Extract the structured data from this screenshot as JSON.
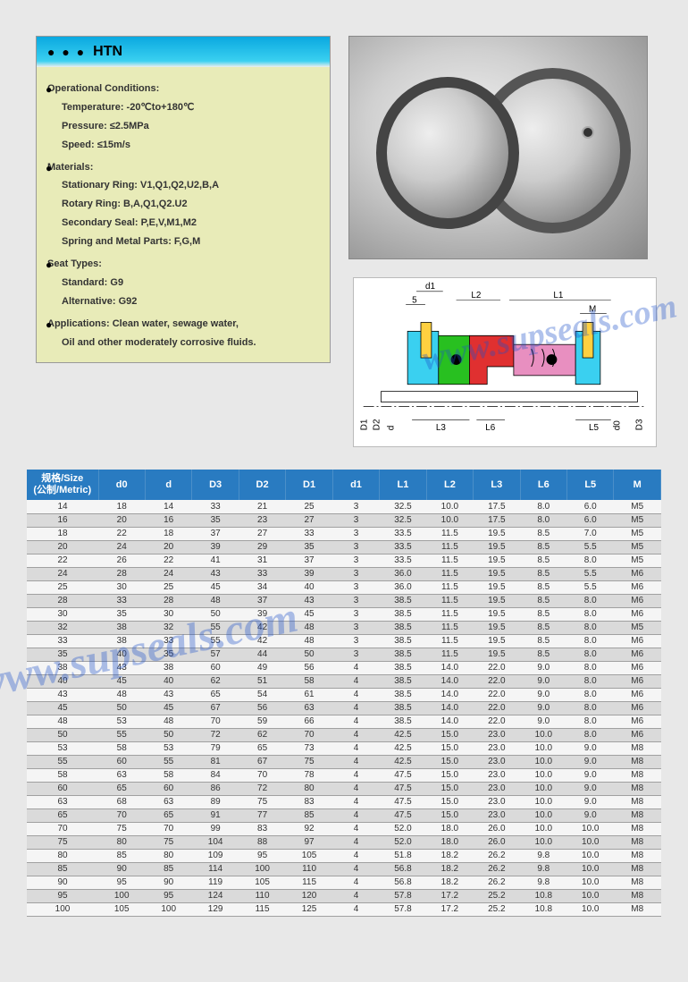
{
  "title": {
    "code": "HTN",
    "dots": "● ● ●"
  },
  "specs": {
    "operational_heading": "Operational Conditions:",
    "temperature": "Temperature: -20℃to+180℃",
    "pressure": "Pressure: ≤2.5MPa",
    "speed": "Speed: ≤15m/s",
    "materials_heading": "Materials:",
    "stationary": "Stationary Ring: V1,Q1,Q2,U2,B,A",
    "rotary": "Rotary Ring: B,A,Q1,Q2.U2",
    "secondary": "Secondary Seal: P,E,V,M1,M2",
    "spring": "Spring and Metal Parts: F,G,M",
    "seat_heading": "Seat Types:",
    "standard": "Standard:  G9",
    "alternative": "Alternative:  G92",
    "app_heading": "Applications: Clean water, sewage water,",
    "app_line2": "Oil and other moderately corrosive fluids."
  },
  "diagram_labels": {
    "d1": "d1",
    "five": "5",
    "L2": "L2",
    "L1": "L1",
    "M": "M",
    "L3": "L3",
    "L6": "L6",
    "L5": "L5",
    "D1": "D1",
    "D2": "D2",
    "d": "d",
    "d0": "d0",
    "D3": "D3"
  },
  "watermark": "www.supseals.com",
  "table": {
    "header_first": "规格/Size\n(公制/Metric)",
    "columns": [
      "d0",
      "d",
      "D3",
      "D2",
      "D1",
      "d1",
      "L1",
      "L2",
      "L3",
      "L6",
      "L5",
      "M"
    ],
    "rows": [
      [
        "14",
        "18",
        "14",
        "33",
        "21",
        "25",
        "3",
        "32.5",
        "10.0",
        "17.5",
        "8.0",
        "6.0",
        "M5"
      ],
      [
        "16",
        "20",
        "16",
        "35",
        "23",
        "27",
        "3",
        "32.5",
        "10.0",
        "17.5",
        "8.0",
        "6.0",
        "M5"
      ],
      [
        "18",
        "22",
        "18",
        "37",
        "27",
        "33",
        "3",
        "33.5",
        "11.5",
        "19.5",
        "8.5",
        "7.0",
        "M5"
      ],
      [
        "20",
        "24",
        "20",
        "39",
        "29",
        "35",
        "3",
        "33.5",
        "11.5",
        "19.5",
        "8.5",
        "5.5",
        "M5"
      ],
      [
        "22",
        "26",
        "22",
        "41",
        "31",
        "37",
        "3",
        "33.5",
        "11.5",
        "19.5",
        "8.5",
        "8.0",
        "M5"
      ],
      [
        "24",
        "28",
        "24",
        "43",
        "33",
        "39",
        "3",
        "36.0",
        "11.5",
        "19.5",
        "8.5",
        "5.5",
        "M6"
      ],
      [
        "25",
        "30",
        "25",
        "45",
        "34",
        "40",
        "3",
        "36.0",
        "11.5",
        "19.5",
        "8.5",
        "5.5",
        "M6"
      ],
      [
        "28",
        "33",
        "28",
        "48",
        "37",
        "43",
        "3",
        "38.5",
        "11.5",
        "19.5",
        "8.5",
        "8.0",
        "M6"
      ],
      [
        "30",
        "35",
        "30",
        "50",
        "39",
        "45",
        "3",
        "38.5",
        "11.5",
        "19.5",
        "8.5",
        "8.0",
        "M6"
      ],
      [
        "32",
        "38",
        "32",
        "55",
        "42",
        "48",
        "3",
        "38.5",
        "11.5",
        "19.5",
        "8.5",
        "8.0",
        "M5"
      ],
      [
        "33",
        "38",
        "33",
        "55",
        "42",
        "48",
        "3",
        "38.5",
        "11.5",
        "19.5",
        "8.5",
        "8.0",
        "M6"
      ],
      [
        "35",
        "40",
        "35",
        "57",
        "44",
        "50",
        "3",
        "38.5",
        "11.5",
        "19.5",
        "8.5",
        "8.0",
        "M6"
      ],
      [
        "38",
        "43",
        "38",
        "60",
        "49",
        "56",
        "4",
        "38.5",
        "14.0",
        "22.0",
        "9.0",
        "8.0",
        "M6"
      ],
      [
        "40",
        "45",
        "40",
        "62",
        "51",
        "58",
        "4",
        "38.5",
        "14.0",
        "22.0",
        "9.0",
        "8.0",
        "M6"
      ],
      [
        "43",
        "48",
        "43",
        "65",
        "54",
        "61",
        "4",
        "38.5",
        "14.0",
        "22.0",
        "9.0",
        "8.0",
        "M6"
      ],
      [
        "45",
        "50",
        "45",
        "67",
        "56",
        "63",
        "4",
        "38.5",
        "14.0",
        "22.0",
        "9.0",
        "8.0",
        "M6"
      ],
      [
        "48",
        "53",
        "48",
        "70",
        "59",
        "66",
        "4",
        "38.5",
        "14.0",
        "22.0",
        "9.0",
        "8.0",
        "M6"
      ],
      [
        "50",
        "55",
        "50",
        "72",
        "62",
        "70",
        "4",
        "42.5",
        "15.0",
        "23.0",
        "10.0",
        "8.0",
        "M6"
      ],
      [
        "53",
        "58",
        "53",
        "79",
        "65",
        "73",
        "4",
        "42.5",
        "15.0",
        "23.0",
        "10.0",
        "9.0",
        "M8"
      ],
      [
        "55",
        "60",
        "55",
        "81",
        "67",
        "75",
        "4",
        "42.5",
        "15.0",
        "23.0",
        "10.0",
        "9.0",
        "M8"
      ],
      [
        "58",
        "63",
        "58",
        "84",
        "70",
        "78",
        "4",
        "47.5",
        "15.0",
        "23.0",
        "10.0",
        "9.0",
        "M8"
      ],
      [
        "60",
        "65",
        "60",
        "86",
        "72",
        "80",
        "4",
        "47.5",
        "15.0",
        "23.0",
        "10.0",
        "9.0",
        "M8"
      ],
      [
        "63",
        "68",
        "63",
        "89",
        "75",
        "83",
        "4",
        "47.5",
        "15.0",
        "23.0",
        "10.0",
        "9.0",
        "M8"
      ],
      [
        "65",
        "70",
        "65",
        "91",
        "77",
        "85",
        "4",
        "47.5",
        "15.0",
        "23.0",
        "10.0",
        "9.0",
        "M8"
      ],
      [
        "70",
        "75",
        "70",
        "99",
        "83",
        "92",
        "4",
        "52.0",
        "18.0",
        "26.0",
        "10.0",
        "10.0",
        "M8"
      ],
      [
        "75",
        "80",
        "75",
        "104",
        "88",
        "97",
        "4",
        "52.0",
        "18.0",
        "26.0",
        "10.0",
        "10.0",
        "M8"
      ],
      [
        "80",
        "85",
        "80",
        "109",
        "95",
        "105",
        "4",
        "51.8",
        "18.2",
        "26.2",
        "9.8",
        "10.0",
        "M8"
      ],
      [
        "85",
        "90",
        "85",
        "114",
        "100",
        "110",
        "4",
        "56.8",
        "18.2",
        "26.2",
        "9.8",
        "10.0",
        "M8"
      ],
      [
        "90",
        "95",
        "90",
        "119",
        "105",
        "115",
        "4",
        "56.8",
        "18.2",
        "26.2",
        "9.8",
        "10.0",
        "M8"
      ],
      [
        "95",
        "100",
        "95",
        "124",
        "110",
        "120",
        "4",
        "57.8",
        "17.2",
        "25.2",
        "10.8",
        "10.0",
        "M8"
      ],
      [
        "100",
        "105",
        "100",
        "129",
        "115",
        "125",
        "4",
        "57.8",
        "17.2",
        "25.2",
        "10.8",
        "10.0",
        "M8"
      ]
    ]
  }
}
